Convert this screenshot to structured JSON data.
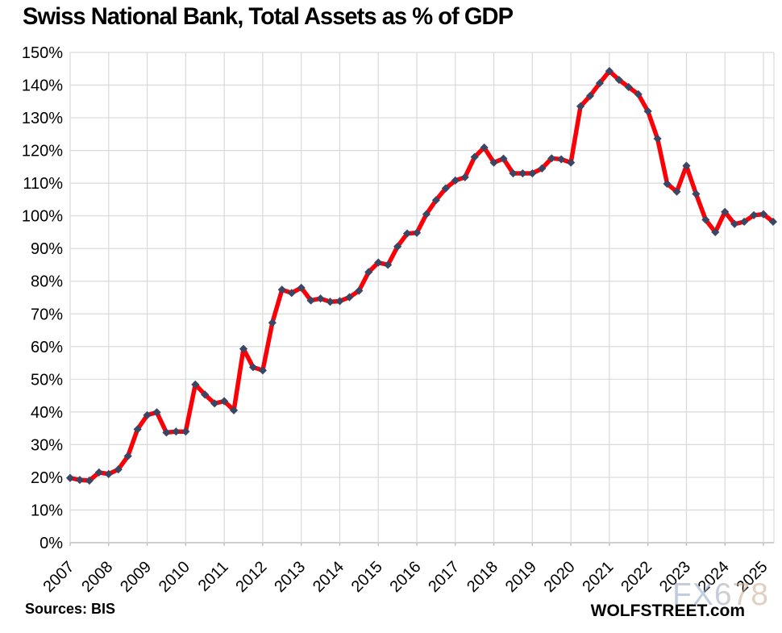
{
  "title": "Swiss National Bank, Total Assets as % of GDP",
  "footer": {
    "source": "Sources: BIS",
    "brand": "WOLFSTREET.com",
    "watermark": "FX678"
  },
  "colors": {
    "line": "#FB0007",
    "marker": "#3A4663",
    "gridline": "#D9D9D9",
    "axis": "#BFBFBF",
    "text": "#000000"
  },
  "chart_data": {
    "type": "line",
    "title": "Swiss National Bank, Total Assets as % of GDP",
    "x_unit": "quarterly",
    "x_start": "2007-Q1",
    "x_end": "2025-Q2",
    "x_tick_labels": [
      "2007",
      "2008",
      "2009",
      "2010",
      "2011",
      "2012",
      "2013",
      "2014",
      "2015",
      "2016",
      "2017",
      "2018",
      "2019",
      "2020",
      "2021",
      "2022",
      "2023",
      "2024",
      "2025"
    ],
    "xlabel": "",
    "ylabel": "",
    "ylim": [
      0,
      150
    ],
    "y_tick_step": 10,
    "y_tick_suffix": "%",
    "grid": true,
    "legend_position": "none",
    "series": [
      {
        "name": "SNB Total Assets as % of GDP",
        "line_color": "#FB0007",
        "marker_color": "#3A4663",
        "values": [
          19.8,
          19.2,
          19.0,
          21.5,
          21.0,
          22.4,
          26.5,
          34.7,
          39.0,
          39.9,
          33.7,
          34.0,
          34.0,
          48.4,
          45.3,
          42.6,
          43.3,
          40.5,
          59.3,
          53.7,
          52.7,
          67.3,
          77.4,
          76.4,
          78.0,
          74.1,
          74.7,
          73.7,
          73.9,
          75.1,
          77.1,
          82.8,
          85.7,
          85.0,
          90.6,
          94.6,
          94.8,
          100.5,
          104.8,
          108.4,
          110.8,
          111.8,
          118.0,
          120.9,
          116.3,
          117.5,
          113.0,
          113.0,
          113.0,
          114.5,
          117.6,
          117.3,
          116.3,
          133.5,
          136.7,
          140.6,
          144.3,
          141.6,
          139.4,
          137.2,
          132.0,
          123.6,
          109.8,
          107.4,
          115.3,
          106.7,
          98.8,
          95.0,
          101.2,
          97.5,
          98.2,
          100.2,
          100.5,
          98.2
        ]
      }
    ]
  }
}
